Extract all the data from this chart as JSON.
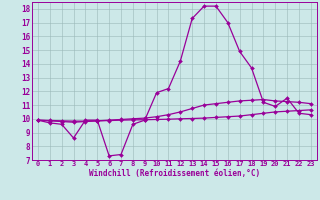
{
  "background_color": "#cce8e8",
  "grid_color": "#b0c8c8",
  "line_color": "#990099",
  "xlabel": "Windchill (Refroidissement éolien,°C)",
  "xlim": [
    -0.5,
    23.5
  ],
  "ylim": [
    7,
    18.5
  ],
  "yticks": [
    7,
    8,
    9,
    10,
    11,
    12,
    13,
    14,
    15,
    16,
    17,
    18
  ],
  "xticks": [
    0,
    1,
    2,
    3,
    4,
    5,
    6,
    7,
    8,
    9,
    10,
    11,
    12,
    13,
    14,
    15,
    16,
    17,
    18,
    19,
    20,
    21,
    22,
    23
  ],
  "series": [
    {
      "x": [
        0,
        1,
        2,
        3,
        4,
        5,
        6,
        7,
        8,
        9,
        10,
        11,
        12,
        13,
        14,
        15,
        16,
        17,
        18,
        19,
        20,
        21,
        22,
        23
      ],
      "y": [
        9.9,
        9.7,
        9.6,
        8.6,
        9.9,
        9.9,
        7.3,
        7.4,
        9.6,
        9.9,
        11.9,
        12.2,
        14.2,
        17.3,
        18.2,
        18.2,
        17.0,
        14.9,
        13.7,
        11.2,
        10.9,
        11.5,
        10.4,
        10.3
      ]
    },
    {
      "x": [
        0,
        1,
        2,
        3,
        4,
        5,
        6,
        7,
        8,
        9,
        10,
        11,
        12,
        13,
        14,
        15,
        16,
        17,
        18,
        19,
        20,
        21,
        22,
        23
      ],
      "y": [
        9.9,
        9.85,
        9.8,
        9.75,
        9.8,
        9.85,
        9.9,
        9.95,
        10.0,
        10.05,
        10.15,
        10.3,
        10.5,
        10.75,
        11.0,
        11.1,
        11.2,
        11.3,
        11.35,
        11.4,
        11.3,
        11.25,
        11.2,
        11.1
      ]
    },
    {
      "x": [
        0,
        1,
        2,
        3,
        4,
        5,
        6,
        7,
        8,
        9,
        10,
        11,
        12,
        13,
        14,
        15,
        16,
        17,
        18,
        19,
        20,
        21,
        22,
        23
      ],
      "y": [
        9.9,
        9.88,
        9.85,
        9.83,
        9.83,
        9.85,
        9.87,
        9.9,
        9.92,
        9.93,
        9.95,
        9.97,
        10.0,
        10.02,
        10.05,
        10.1,
        10.15,
        10.2,
        10.3,
        10.4,
        10.5,
        10.55,
        10.6,
        10.65
      ]
    }
  ]
}
